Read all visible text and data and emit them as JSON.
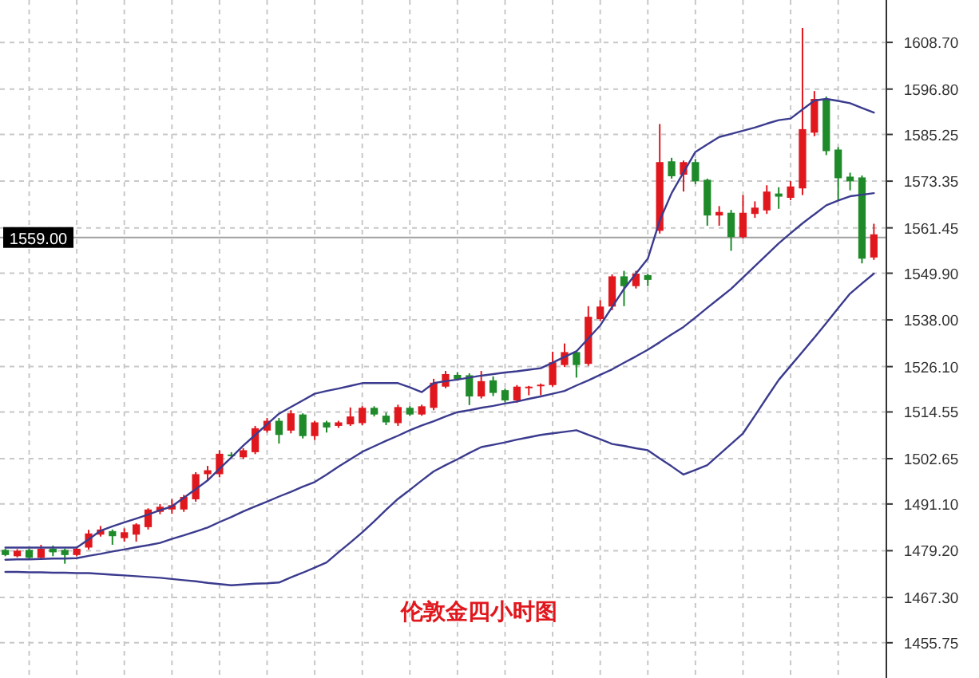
{
  "chart_data": {
    "type": "candlestick",
    "title": "伦敦金四小时图",
    "grid": true,
    "categories": [
      null,
      null,
      null,
      null,
      null,
      null,
      null,
      null,
      null,
      null,
      null,
      null,
      null,
      null,
      null,
      null,
      null,
      null,
      null,
      null,
      null,
      null,
      null,
      null,
      null,
      null,
      null,
      null,
      null,
      null,
      null,
      null,
      null,
      null,
      null,
      null,
      null,
      null,
      null,
      null,
      null,
      null,
      null,
      null,
      null,
      null,
      null,
      null,
      null,
      null,
      null,
      null,
      null,
      null,
      null,
      null,
      null,
      null,
      null,
      null,
      null,
      null,
      null,
      null,
      null,
      null,
      null,
      null,
      null,
      null,
      null,
      null,
      null,
      null
    ],
    "ylim": [
      1454.9,
      1619.5
    ],
    "yticks": [
      {
        "value": 1455.75,
        "label": "1455.75"
      },
      {
        "value": 1467.3,
        "label": "1467.30"
      },
      {
        "value": 1479.2,
        "label": "1479.20"
      },
      {
        "value": 1491.1,
        "label": "1491.10"
      },
      {
        "value": 1502.65,
        "label": "1502.65"
      },
      {
        "value": 1514.55,
        "label": "1514.55"
      },
      {
        "value": 1526.1,
        "label": "1526.10"
      },
      {
        "value": 1538.0,
        "label": "1538.00"
      },
      {
        "value": 1549.9,
        "label": "1549.90"
      },
      {
        "value": 1561.45,
        "label": "1561.45"
      },
      {
        "value": 1573.35,
        "label": "1573.35"
      },
      {
        "value": 1585.25,
        "label": "1585.25"
      },
      {
        "value": 1596.8,
        "label": "1596.80"
      },
      {
        "value": 1608.7,
        "label": "1608.70"
      }
    ],
    "ref_lines": [
      {
        "axis": "y",
        "value": 1559.0,
        "label": "1559.00",
        "color": "#a0a0a0"
      }
    ],
    "ohlc": [
      [
        1479.4,
        1479.7,
        1477.8,
        1478.1
      ],
      [
        1477.8,
        1479.6,
        1477.5,
        1479.2
      ],
      [
        1479.4,
        1479.7,
        1477.2,
        1477.4
      ],
      [
        1477.4,
        1480.7,
        1477.2,
        1479.7
      ],
      [
        1479.7,
        1480.5,
        1477.8,
        1478.8
      ],
      [
        1479.4,
        1479.7,
        1475.9,
        1478.1
      ],
      [
        1478.1,
        1480.1,
        1477.8,
        1479.7
      ],
      [
        1480.0,
        1484.5,
        1479.5,
        1483.6
      ],
      [
        1483.3,
        1485.5,
        1482.8,
        1484.6
      ],
      [
        1484.2,
        1484.6,
        1480.7,
        1482.9
      ],
      [
        1482.4,
        1484.9,
        1481.5,
        1483.9
      ],
      [
        1483.3,
        1486.2,
        1481.5,
        1485.9
      ],
      [
        1485.2,
        1490.0,
        1484.6,
        1489.7
      ],
      [
        1489.1,
        1491.1,
        1488.5,
        1490.4
      ],
      [
        1489.7,
        1492.3,
        1488.6,
        1490.8
      ],
      [
        1489.7,
        1493.4,
        1489.1,
        1492.9
      ],
      [
        1492.3,
        1499.2,
        1491.7,
        1498.7
      ],
      [
        1498.7,
        1500.8,
        1497.1,
        1499.7
      ],
      [
        1498.7,
        1504.8,
        1497.9,
        1503.9
      ],
      [
        1503.7,
        1504.3,
        1502.9,
        1503.3
      ],
      [
        1503.0,
        1505.3,
        1502.6,
        1504.8
      ],
      [
        1504.3,
        1511.0,
        1503.8,
        1510.4
      ],
      [
        1509.8,
        1513.0,
        1509.3,
        1512.3
      ],
      [
        1512.3,
        1513.0,
        1506.5,
        1508.7
      ],
      [
        1509.8,
        1515.0,
        1509.1,
        1514.2
      ],
      [
        1513.9,
        1514.2,
        1507.8,
        1508.4
      ],
      [
        1508.4,
        1512.3,
        1507.4,
        1511.9
      ],
      [
        1511.9,
        1512.3,
        1509.3,
        1510.6
      ],
      [
        1511.0,
        1512.3,
        1510.5,
        1511.9
      ],
      [
        1511.4,
        1515.7,
        1511.0,
        1513.4
      ],
      [
        1511.7,
        1516.0,
        1511.2,
        1515.6
      ],
      [
        1515.6,
        1516.0,
        1513.4,
        1513.9
      ],
      [
        1513.6,
        1514.4,
        1511.2,
        1511.9
      ],
      [
        1511.7,
        1516.4,
        1511.0,
        1515.8
      ],
      [
        1515.6,
        1516.0,
        1513.6,
        1513.9
      ],
      [
        1513.9,
        1516.4,
        1513.6,
        1516.0
      ],
      [
        1515.6,
        1523.0,
        1515.0,
        1522.0
      ],
      [
        1521.0,
        1525.0,
        1520.6,
        1524.2
      ],
      [
        1524.0,
        1524.7,
        1522.5,
        1522.9
      ],
      [
        1523.9,
        1524.4,
        1516.3,
        1518.5
      ],
      [
        1518.5,
        1525.0,
        1518.0,
        1522.4
      ],
      [
        1522.6,
        1523.6,
        1518.6,
        1519.4
      ],
      [
        1520.1,
        1520.5,
        1517.0,
        1517.5
      ],
      [
        1517.5,
        1521.4,
        1516.9,
        1521.0
      ],
      [
        1520.8,
        1521.2,
        1518.8,
        1521.0
      ],
      [
        1521.2,
        1521.8,
        1518.8,
        1521.5
      ],
      [
        1521.4,
        1529.9,
        1521.0,
        1527.2
      ],
      [
        1526.5,
        1532.0,
        1526.0,
        1529.8
      ],
      [
        1529.8,
        1530.2,
        1523.3,
        1526.5
      ],
      [
        1526.8,
        1541.5,
        1526.3,
        1538.8
      ],
      [
        1538.2,
        1543.0,
        1537.7,
        1541.4
      ],
      [
        1541.4,
        1549.6,
        1540.5,
        1549.1
      ],
      [
        1549.1,
        1550.5,
        1541.5,
        1546.6
      ],
      [
        1546.6,
        1550.5,
        1546.0,
        1549.8
      ],
      [
        1549.4,
        1549.8,
        1546.6,
        1548.2
      ],
      [
        1560.7,
        1587.9,
        1560.0,
        1578.2
      ],
      [
        1578.4,
        1579.3,
        1574.0,
        1574.6
      ],
      [
        1575.0,
        1578.6,
        1570.7,
        1578.2
      ],
      [
        1578.2,
        1579.0,
        1572.6,
        1573.3
      ],
      [
        1573.7,
        1574.0,
        1562.0,
        1564.6
      ],
      [
        1564.6,
        1567.0,
        1562.0,
        1565.5
      ],
      [
        1565.3,
        1566.0,
        1555.6,
        1559.1
      ],
      [
        1559.1,
        1569.8,
        1558.7,
        1565.3
      ],
      [
        1565.0,
        1568.2,
        1564.0,
        1566.6
      ],
      [
        1565.9,
        1572.3,
        1565.0,
        1570.7
      ],
      [
        1570.2,
        1571.8,
        1566.3,
        1569.4
      ],
      [
        1569.1,
        1573.4,
        1568.5,
        1572.0
      ],
      [
        1571.5,
        1612.4,
        1569.8,
        1586.6
      ],
      [
        1585.7,
        1596.3,
        1584.8,
        1594.3
      ],
      [
        1594.3,
        1594.9,
        1580.0,
        1581.0
      ],
      [
        1581.4,
        1582.0,
        1568.5,
        1574.1
      ],
      [
        1574.5,
        1575.5,
        1571.0,
        1573.3
      ],
      [
        1574.3,
        1574.8,
        1552.4,
        1553.6
      ],
      [
        1553.9,
        1562.5,
        1553.3,
        1559.8
      ]
    ],
    "colors": [
      "#1f8a2a",
      "#e0181e",
      "#1f8a2a",
      "#e0181e",
      "#1f8a2a",
      "#1f8a2a",
      "#e0181e",
      "#e0181e",
      "#e0181e",
      "#1f8a2a",
      "#e0181e",
      "#e0181e",
      "#e0181e",
      "#e0181e",
      "#e0181e",
      "#e0181e",
      "#e0181e",
      "#e0181e",
      "#e0181e",
      "#1f8a2a",
      "#e0181e",
      "#e0181e",
      "#e0181e",
      "#1f8a2a",
      "#e0181e",
      "#1f8a2a",
      "#e0181e",
      "#1f8a2a",
      "#e0181e",
      "#e0181e",
      "#e0181e",
      "#1f8a2a",
      "#1f8a2a",
      "#e0181e",
      "#1f8a2a",
      "#e0181e",
      "#e0181e",
      "#e0181e",
      "#1f8a2a",
      "#1f8a2a",
      "#e0181e",
      "#1f8a2a",
      "#1f8a2a",
      "#e0181e",
      "#e0181e",
      "#e0181e",
      "#e0181e",
      "#e0181e",
      "#1f8a2a",
      "#e0181e",
      "#e0181e",
      "#e0181e",
      "#1f8a2a",
      "#e0181e",
      "#1f8a2a",
      "#e0181e",
      "#1f8a2a",
      "#e0181e",
      "#1f8a2a",
      "#1f8a2a",
      "#e0181e",
      "#1f8a2a",
      "#e0181e",
      "#e0181e",
      "#e0181e",
      "#1f8a2a",
      "#e0181e",
      "#e0181e",
      "#e0181e",
      "#1f8a2a",
      "#1f8a2a",
      "#1f8a2a",
      "#1f8a2a",
      "#e0181e"
    ],
    "series": [
      {
        "type": "line",
        "color": "#3b3b8f",
        "values": [
          1480.0,
          1480.0,
          1480.0,
          1480.0,
          1480.0,
          1480.0,
          1480.0,
          1482.1,
          1484.3,
          1485.4,
          1486.4,
          1487.4,
          1488.4,
          1489.5,
          1490.5,
          1492.7,
          1494.9,
          1497.1,
          1500.1,
          1503.0,
          1506.0,
          1508.7,
          1511.4,
          1514.1,
          1515.8,
          1517.5,
          1519.2,
          1519.9,
          1520.5,
          1521.2,
          1521.9,
          1521.9,
          1521.9,
          1521.9,
          1520.8,
          1519.6,
          1521.9,
          1522.4,
          1522.8,
          1523.3,
          1523.8,
          1524.2,
          1524.6,
          1524.9,
          1525.3,
          1525.7,
          1527.1,
          1528.6,
          1530.0,
          1533.3,
          1536.6,
          1541.3,
          1545.9,
          1549.8,
          1553.6,
          1563.3,
          1570.3,
          1575.6,
          1580.8,
          1582.7,
          1584.6,
          1585.4,
          1586.2,
          1587.0,
          1588.0,
          1588.9,
          1589.3,
          1591.6,
          1593.9,
          1594.3,
          1593.8,
          1593.2,
          1592.0,
          1590.8
        ]
      },
      {
        "type": "line",
        "color": "#3b3b8f",
        "values": [
          1476.9,
          1477.0,
          1477.0,
          1477.1,
          1477.2,
          1477.2,
          1477.3,
          1477.9,
          1478.4,
          1479.0,
          1479.5,
          1480.1,
          1480.6,
          1481.2,
          1482.2,
          1483.1,
          1484.1,
          1485.1,
          1486.5,
          1487.8,
          1489.2,
          1490.5,
          1491.7,
          1493.0,
          1494.2,
          1495.5,
          1496.7,
          1498.6,
          1500.6,
          1502.5,
          1504.4,
          1505.8,
          1507.2,
          1508.5,
          1509.9,
          1511.1,
          1512.2,
          1513.4,
          1514.5,
          1515.0,
          1515.6,
          1516.1,
          1516.7,
          1517.2,
          1517.9,
          1518.5,
          1519.2,
          1519.9,
          1521.3,
          1522.6,
          1524.0,
          1525.4,
          1527.1,
          1528.7,
          1530.4,
          1532.3,
          1534.3,
          1536.2,
          1538.6,
          1541.1,
          1543.5,
          1545.9,
          1548.8,
          1551.7,
          1554.6,
          1557.5,
          1560.1,
          1562.6,
          1564.9,
          1567.2,
          1568.4,
          1569.5,
          1569.9,
          1570.3
        ]
      },
      {
        "type": "line",
        "color": "#3b3b8f",
        "values": [
          1473.8,
          1473.8,
          1473.7,
          1473.7,
          1473.6,
          1473.6,
          1473.5,
          1473.5,
          1473.3,
          1473.1,
          1472.9,
          1472.7,
          1472.5,
          1472.3,
          1472.0,
          1471.7,
          1471.4,
          1471.0,
          1470.7,
          1470.4,
          1470.6,
          1470.8,
          1470.9,
          1471.1,
          1472.4,
          1473.6,
          1474.9,
          1476.2,
          1478.8,
          1481.3,
          1483.9,
          1486.7,
          1489.6,
          1492.4,
          1494.7,
          1497.1,
          1499.4,
          1501.0,
          1502.5,
          1504.1,
          1505.6,
          1506.2,
          1506.8,
          1507.5,
          1508.1,
          1508.7,
          1509.1,
          1509.5,
          1509.9,
          1508.7,
          1507.6,
          1506.4,
          1505.9,
          1505.3,
          1504.8,
          1502.7,
          1500.7,
          1498.6,
          1499.8,
          1501.0,
          1503.7,
          1506.4,
          1509.1,
          1513.6,
          1518.2,
          1522.7,
          1526.3,
          1529.9,
          1533.5,
          1537.2,
          1541.0,
          1544.7,
          1547.3,
          1549.8
        ]
      }
    ]
  }
}
